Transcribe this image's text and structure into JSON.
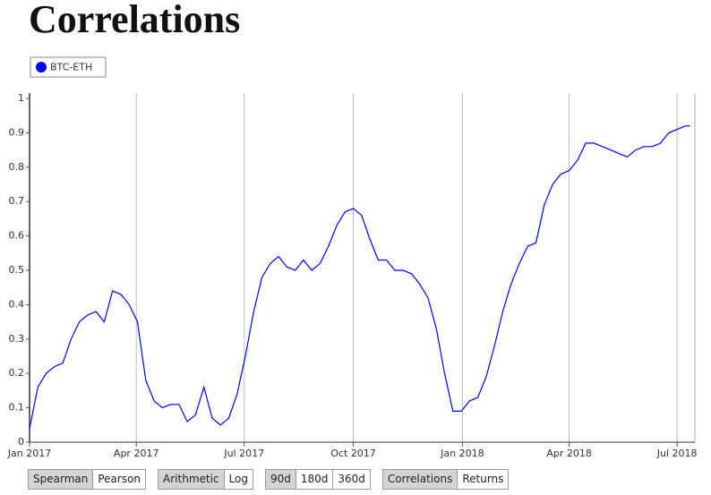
{
  "header": {
    "title": "Correlations"
  },
  "chart_data": {
    "type": "line",
    "grid": "x",
    "xlim": [
      "2017-01-01",
      "2018-07-16"
    ],
    "xticks": [
      {
        "value": "2017-01-01",
        "label": "Jan 2017"
      },
      {
        "value": "2017-04-01",
        "label": "Apr 2017"
      },
      {
        "value": "2017-07-01",
        "label": "Jul 2017"
      },
      {
        "value": "2017-10-01",
        "label": "Oct 2017"
      },
      {
        "value": "2018-01-01",
        "label": "Jan 2018"
      },
      {
        "value": "2018-04-01",
        "label": "Apr 2018"
      },
      {
        "value": "2018-07-01",
        "label": "Jul 2018"
      }
    ],
    "ylim": [
      0,
      1
    ],
    "yticks": [
      0,
      0.1,
      0.2,
      0.3,
      0.4,
      0.5,
      0.6,
      0.7,
      0.8,
      0.9,
      1
    ],
    "x": [
      "2017-01-01",
      "2017-01-08",
      "2017-01-15",
      "2017-01-22",
      "2017-01-29",
      "2017-02-05",
      "2017-02-12",
      "2017-02-19",
      "2017-02-26",
      "2017-03-05",
      "2017-03-12",
      "2017-03-19",
      "2017-03-26",
      "2017-04-02",
      "2017-04-09",
      "2017-04-16",
      "2017-04-23",
      "2017-04-30",
      "2017-05-07",
      "2017-05-14",
      "2017-05-21",
      "2017-05-28",
      "2017-06-04",
      "2017-06-11",
      "2017-06-18",
      "2017-06-25",
      "2017-07-02",
      "2017-07-09",
      "2017-07-16",
      "2017-07-23",
      "2017-07-30",
      "2017-08-06",
      "2017-08-13",
      "2017-08-20",
      "2017-08-27",
      "2017-09-03",
      "2017-09-10",
      "2017-09-17",
      "2017-09-24",
      "2017-10-01",
      "2017-10-08",
      "2017-10-15",
      "2017-10-22",
      "2017-10-29",
      "2017-11-05",
      "2017-11-12",
      "2017-11-19",
      "2017-11-26",
      "2017-12-03",
      "2017-12-10",
      "2017-12-17",
      "2017-12-24",
      "2017-12-31",
      "2018-01-07",
      "2018-01-14",
      "2018-01-21",
      "2018-01-28",
      "2018-02-04",
      "2018-02-11",
      "2018-02-18",
      "2018-02-25",
      "2018-03-04",
      "2018-03-11",
      "2018-03-18",
      "2018-03-25",
      "2018-04-01",
      "2018-04-08",
      "2018-04-15",
      "2018-04-22",
      "2018-04-29",
      "2018-05-06",
      "2018-05-13",
      "2018-05-20",
      "2018-05-27",
      "2018-06-03",
      "2018-06-10",
      "2018-06-17",
      "2018-06-24",
      "2018-07-01",
      "2018-07-08",
      "2018-07-12"
    ],
    "series": [
      {
        "name": "BTC-ETH",
        "color": "#0000ee",
        "values": [
          0.04,
          0.16,
          0.2,
          0.22,
          0.23,
          0.3,
          0.35,
          0.37,
          0.38,
          0.35,
          0.44,
          0.43,
          0.4,
          0.35,
          0.18,
          0.12,
          0.1,
          0.11,
          0.11,
          0.06,
          0.08,
          0.16,
          0.07,
          0.05,
          0.07,
          0.14,
          0.25,
          0.38,
          0.48,
          0.52,
          0.54,
          0.51,
          0.5,
          0.53,
          0.5,
          0.52,
          0.57,
          0.63,
          0.67,
          0.68,
          0.66,
          0.59,
          0.53,
          0.53,
          0.5,
          0.5,
          0.49,
          0.46,
          0.42,
          0.33,
          0.2,
          0.09,
          0.09,
          0.12,
          0.13,
          0.19,
          0.28,
          0.38,
          0.46,
          0.52,
          0.57,
          0.58,
          0.69,
          0.75,
          0.78,
          0.79,
          0.82,
          0.87,
          0.87,
          0.86,
          0.85,
          0.84,
          0.83,
          0.85,
          0.86,
          0.86,
          0.87,
          0.9,
          0.91,
          0.92,
          0.92
        ]
      }
    ]
  },
  "controls": [
    {
      "options": [
        "Spearman",
        "Pearson"
      ],
      "selected": 0
    },
    {
      "options": [
        "Arithmetic",
        "Log"
      ],
      "selected": 0
    },
    {
      "options": [
        "90d",
        "180d",
        "360d"
      ],
      "selected": 0
    },
    {
      "options": [
        "Correlations",
        "Returns"
      ],
      "selected": 0
    }
  ]
}
